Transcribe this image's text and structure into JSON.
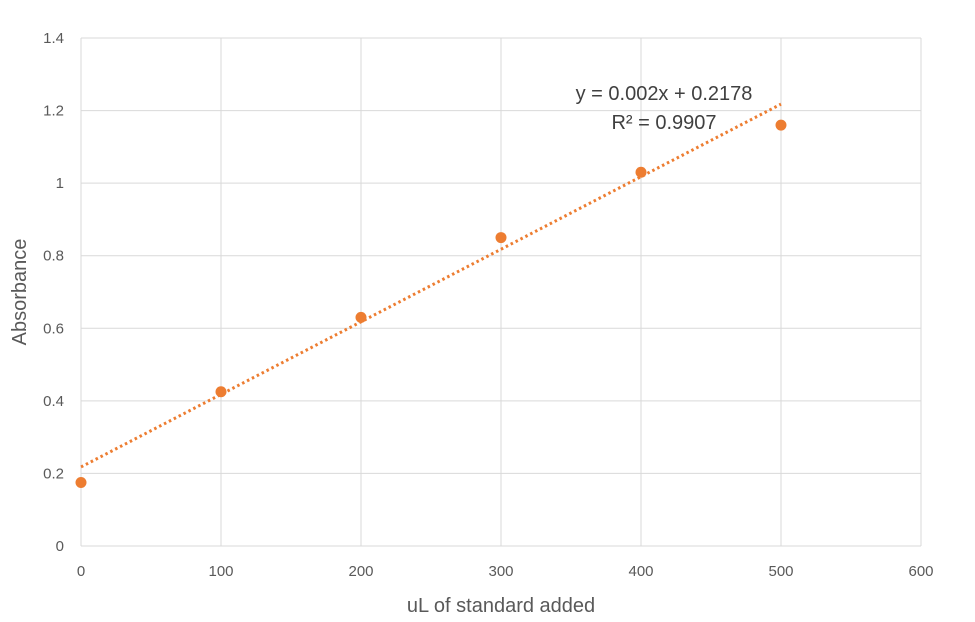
{
  "chart_data": {
    "type": "scatter",
    "title": "",
    "xlabel": "uL of standard added",
    "ylabel": "Absorbance",
    "xlim": [
      0,
      600
    ],
    "ylim": [
      0,
      1.4
    ],
    "x_ticks": [
      0,
      100,
      200,
      300,
      400,
      500,
      600
    ],
    "y_ticks": [
      0,
      0.2,
      0.4,
      0.6,
      0.8,
      1,
      1.2,
      1.4
    ],
    "x_tick_labels": [
      "0",
      "100",
      "200",
      "300",
      "400",
      "500",
      "600"
    ],
    "y_tick_labels": [
      "0",
      "0.2",
      "0.4",
      "0.6",
      "0.8",
      "1",
      "1.2",
      "1.4"
    ],
    "grid": true,
    "legend": "none",
    "series": [
      {
        "x": [
          0,
          100,
          200,
          300,
          400,
          500
        ],
        "y": [
          0.175,
          0.425,
          0.63,
          0.85,
          1.03,
          1.16
        ],
        "color": "#ED7D31"
      }
    ],
    "trendline": {
      "type": "linear",
      "slope": 0.002,
      "intercept": 0.2178,
      "x_range": [
        0,
        500
      ],
      "style": "dotted",
      "color": "#ED7D31"
    },
    "annotations": {
      "equation": "y = 0.002x + 0.2178",
      "r_squared": "R² = 0.9907"
    }
  }
}
